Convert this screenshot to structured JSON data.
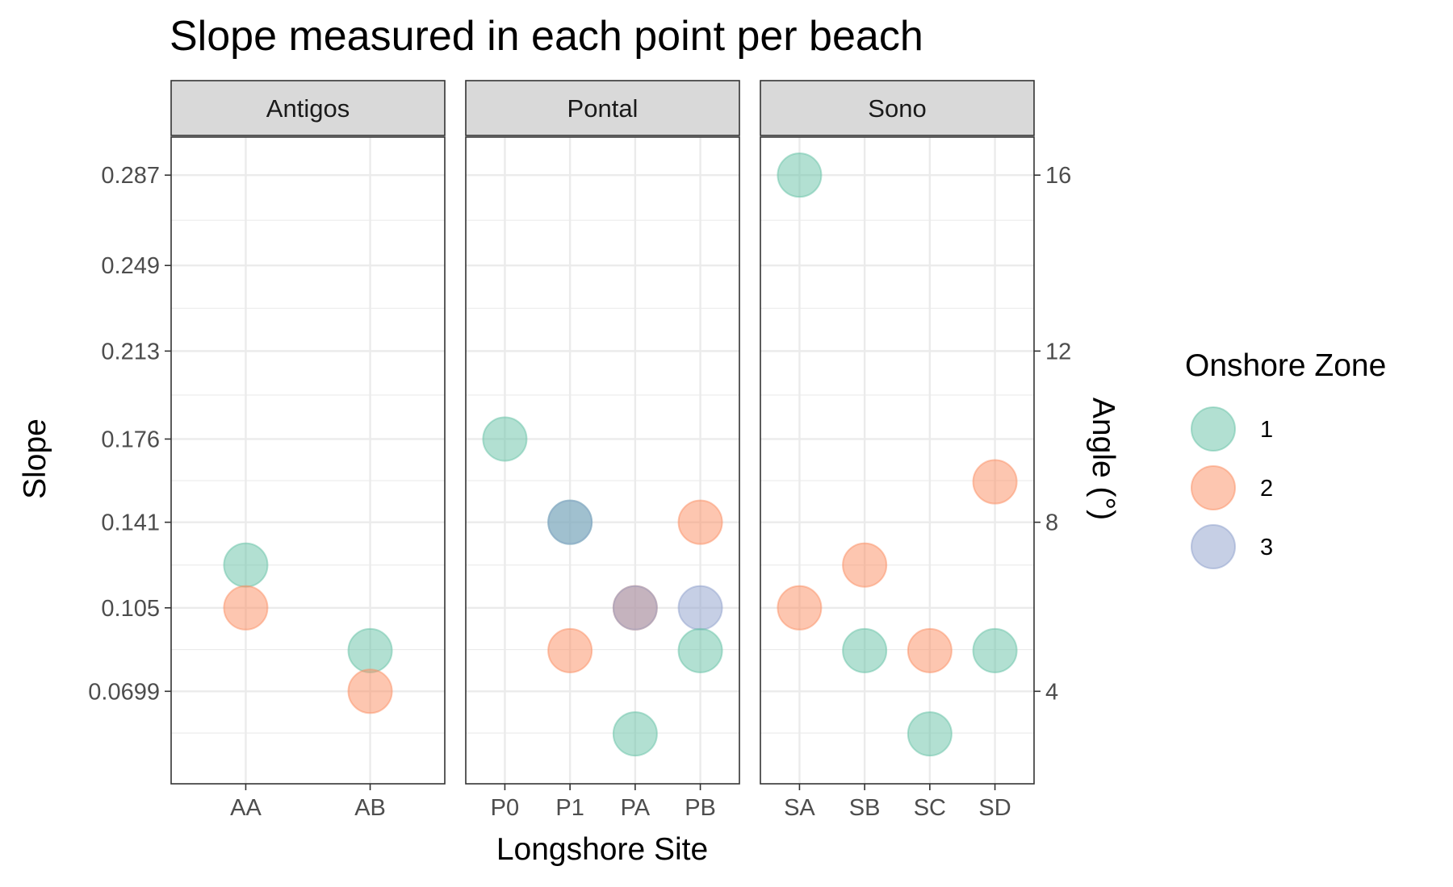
{
  "chart_data": {
    "type": "scatter",
    "title": "Slope measured in each point per beach",
    "xlabel": "Longshore Site",
    "ylabel": "Slope",
    "y2label": "Angle (°)",
    "legend_title": "Onshore Zone",
    "legend_position": "right",
    "grid": true,
    "ylim": [
      0.031,
      0.303
    ],
    "y_ticks": [
      {
        "value": 0.0699,
        "label": "0.0699"
      },
      {
        "value": 0.105,
        "label": "0.105"
      },
      {
        "value": 0.141,
        "label": "0.141"
      },
      {
        "value": 0.176,
        "label": "0.176"
      },
      {
        "value": 0.213,
        "label": "0.213"
      },
      {
        "value": 0.249,
        "label": "0.249"
      },
      {
        "value": 0.287,
        "label": "0.287"
      }
    ],
    "y2_ticks": [
      {
        "value": 0.0699,
        "label": "4"
      },
      {
        "value": 0.141,
        "label": "8"
      },
      {
        "value": 0.213,
        "label": "12"
      },
      {
        "value": 0.287,
        "label": "16"
      }
    ],
    "zones": [
      {
        "name": "1",
        "color": "#66C2A5"
      },
      {
        "name": "2",
        "color": "#FC8D62"
      },
      {
        "name": "3",
        "color": "#8DA0CB"
      }
    ],
    "facets": [
      {
        "name": "Antigos",
        "categories": [
          "AA",
          "AB"
        ],
        "points": [
          {
            "site": "AA",
            "zone": "1",
            "slope": 0.123
          },
          {
            "site": "AA",
            "zone": "2",
            "slope": 0.105
          },
          {
            "site": "AB",
            "zone": "1",
            "slope": 0.087
          },
          {
            "site": "AB",
            "zone": "2",
            "slope": 0.0699
          }
        ]
      },
      {
        "name": "Pontal",
        "categories": [
          "P0",
          "P1",
          "PA",
          "PB"
        ],
        "points": [
          {
            "site": "P0",
            "zone": "1",
            "slope": 0.176
          },
          {
            "site": "P1",
            "zone": "1",
            "slope": 0.141
          },
          {
            "site": "P1",
            "zone": "3",
            "slope": 0.141
          },
          {
            "site": "P1",
            "zone": "2",
            "slope": 0.087
          },
          {
            "site": "PA",
            "zone": "2",
            "slope": 0.105
          },
          {
            "site": "PA",
            "zone": "3",
            "slope": 0.105
          },
          {
            "site": "PA",
            "zone": "1",
            "slope": 0.052
          },
          {
            "site": "PB",
            "zone": "2",
            "slope": 0.141
          },
          {
            "site": "PB",
            "zone": "3",
            "slope": 0.105
          },
          {
            "site": "PB",
            "zone": "1",
            "slope": 0.087
          }
        ]
      },
      {
        "name": "Sono",
        "categories": [
          "SA",
          "SB",
          "SC",
          "SD"
        ],
        "points": [
          {
            "site": "SA",
            "zone": "1",
            "slope": 0.287
          },
          {
            "site": "SA",
            "zone": "2",
            "slope": 0.105
          },
          {
            "site": "SB",
            "zone": "2",
            "slope": 0.123
          },
          {
            "site": "SB",
            "zone": "1",
            "slope": 0.087
          },
          {
            "site": "SC",
            "zone": "2",
            "slope": 0.087
          },
          {
            "site": "SC",
            "zone": "1",
            "slope": 0.052
          },
          {
            "site": "SD",
            "zone": "2",
            "slope": 0.158
          },
          {
            "site": "SD",
            "zone": "1",
            "slope": 0.087
          }
        ]
      }
    ]
  }
}
